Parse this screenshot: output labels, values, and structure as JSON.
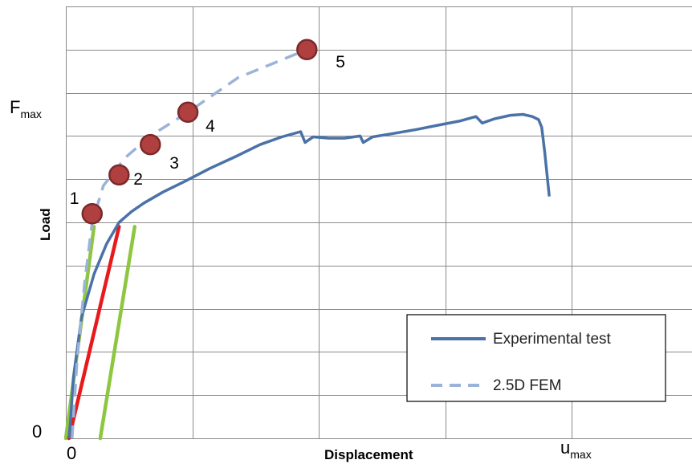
{
  "chart_data": {
    "type": "line",
    "title": "",
    "xlabel": "Displacement",
    "ylabel": "Load",
    "xlim": [
      0,
      10
    ],
    "ylim": [
      0,
      10
    ],
    "x_tick_labels": {
      "origin": "0",
      "umax_main": "u",
      "umax_sub": "max"
    },
    "y_tick_labels": {
      "origin": "0",
      "fmax_main": "F",
      "fmax_sub": "max"
    },
    "fmax_level": 7.55,
    "umax_level": 7.85,
    "grid": true,
    "legend_position": "bottom-right",
    "series": [
      {
        "name": "Experimental test",
        "style": "solid",
        "color": "#4a72a8",
        "points": [
          [
            0.05,
            0.0
          ],
          [
            0.08,
            0.5
          ],
          [
            0.12,
            1.4
          ],
          [
            0.25,
            2.8
          ],
          [
            0.45,
            3.8
          ],
          [
            0.65,
            4.5
          ],
          [
            0.85,
            5.0
          ],
          [
            1.05,
            5.25
          ],
          [
            1.25,
            5.45
          ],
          [
            1.55,
            5.7
          ],
          [
            1.9,
            5.95
          ],
          [
            2.3,
            6.25
          ],
          [
            2.75,
            6.55
          ],
          [
            3.1,
            6.8
          ],
          [
            3.45,
            6.98
          ],
          [
            3.75,
            7.1
          ],
          [
            3.82,
            6.85
          ],
          [
            3.95,
            6.98
          ],
          [
            4.2,
            6.95
          ],
          [
            4.45,
            6.95
          ],
          [
            4.7,
            7.0
          ],
          [
            4.75,
            6.85
          ],
          [
            4.9,
            6.98
          ],
          [
            5.2,
            7.05
          ],
          [
            5.6,
            7.15
          ],
          [
            5.95,
            7.25
          ],
          [
            6.3,
            7.35
          ],
          [
            6.55,
            7.45
          ],
          [
            6.65,
            7.3
          ],
          [
            6.85,
            7.4
          ],
          [
            7.1,
            7.48
          ],
          [
            7.3,
            7.5
          ],
          [
            7.45,
            7.45
          ],
          [
            7.55,
            7.38
          ],
          [
            7.6,
            7.2
          ],
          [
            7.65,
            6.6
          ],
          [
            7.72,
            5.6
          ]
        ]
      },
      {
        "name": "2.5D FEM",
        "style": "dashed",
        "color": "#9bb3d8",
        "points": [
          [
            0.1,
            0.0
          ],
          [
            0.18,
            1.8
          ],
          [
            0.3,
            3.6
          ],
          [
            0.42,
            5.0
          ],
          [
            0.6,
            5.85
          ],
          [
            0.95,
            6.5
          ],
          [
            1.35,
            7.0
          ],
          [
            1.95,
            7.55
          ],
          [
            2.75,
            8.35
          ],
          [
            3.85,
            9.0
          ]
        ]
      }
    ],
    "markers": [
      {
        "label": "1",
        "x": 0.42,
        "y": 5.2
      },
      {
        "label": "2",
        "x": 0.85,
        "y": 6.1
      },
      {
        "label": "3",
        "x": 1.35,
        "y": 6.8
      },
      {
        "label": "4",
        "x": 1.95,
        "y": 7.55
      },
      {
        "label": "5",
        "x": 3.85,
        "y": 9.0
      }
    ],
    "reference_lines": [
      {
        "color": "#8dc63f",
        "from": [
          0.0,
          0.0
        ],
        "to": [
          0.45,
          4.9
        ]
      },
      {
        "color": "#e8191c",
        "from": [
          0.05,
          0.0
        ],
        "to": [
          0.85,
          4.9
        ]
      },
      {
        "color": "#8dc63f",
        "from": [
          0.55,
          0.0
        ],
        "to": [
          1.1,
          4.9
        ]
      }
    ],
    "marker_color": "#b0403f"
  }
}
